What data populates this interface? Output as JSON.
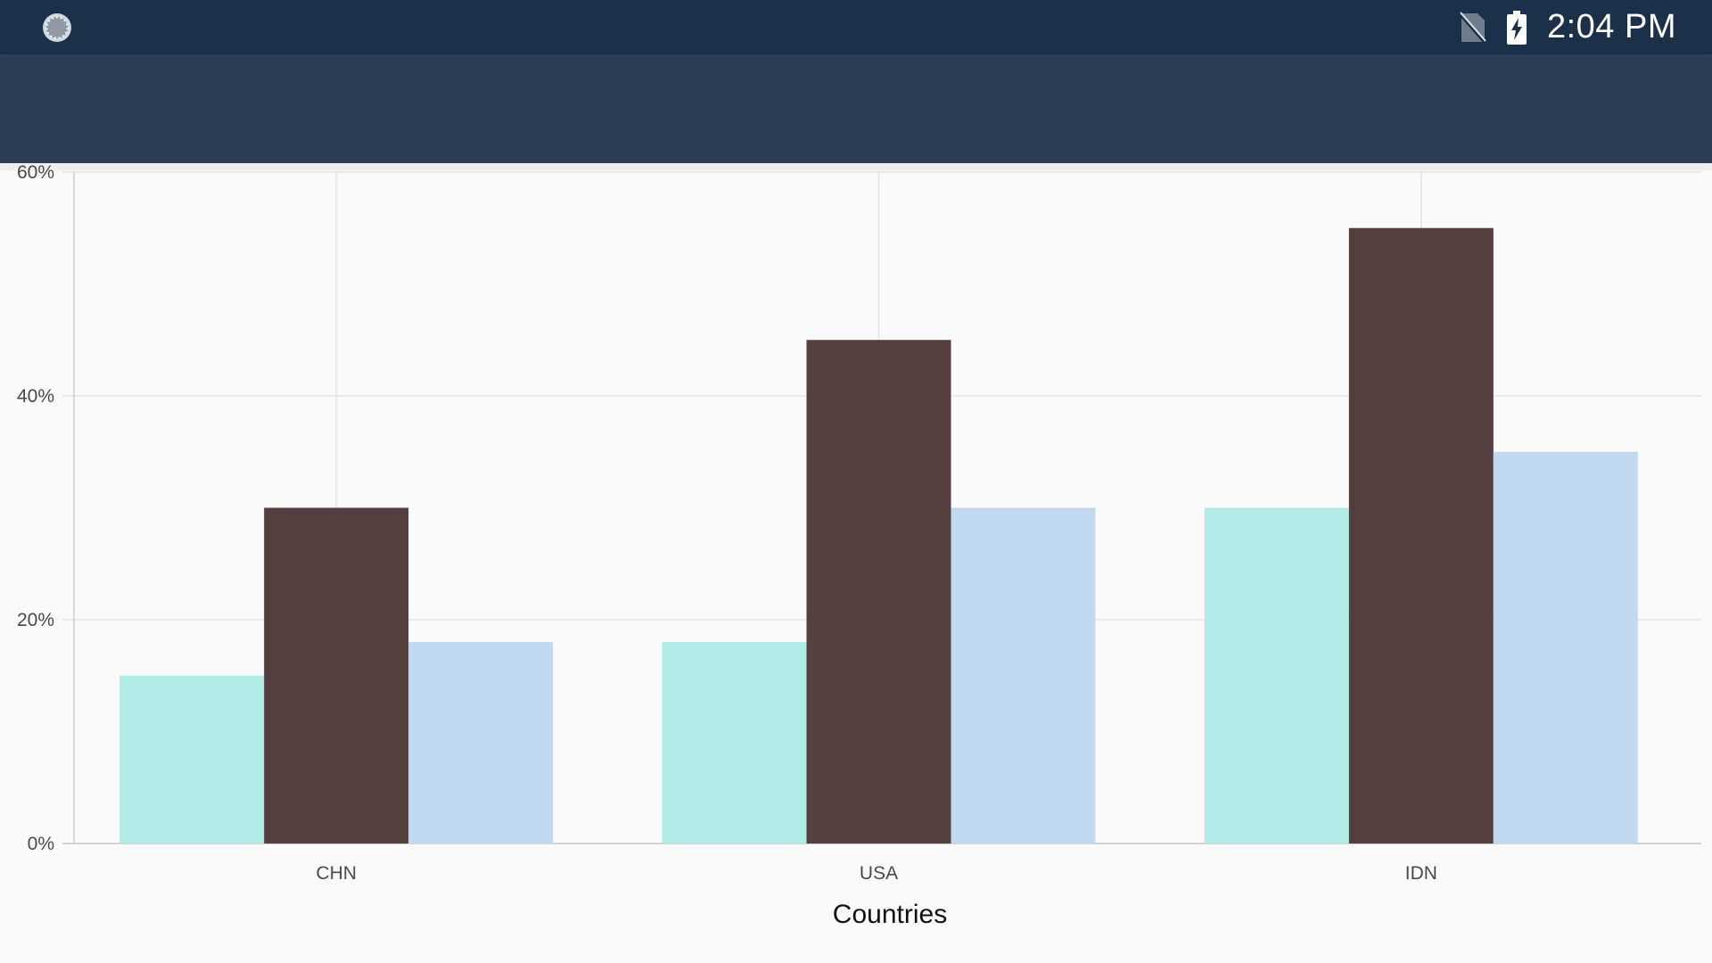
{
  "status_bar": {
    "time": "2:04 PM",
    "icons": [
      "loading-spinner-icon",
      "no-sim-icon",
      "battery-charging-icon"
    ]
  },
  "colors": {
    "status_bar": "#1c304a",
    "app_bar": "#2e3e52",
    "series_1": "#b3ebe6",
    "series_2": "#523f3e",
    "series_3": "#c2d8ef"
  },
  "chart_data": {
    "type": "bar",
    "categories": [
      "CHN",
      "USA",
      "IDN"
    ],
    "series": [
      {
        "values": [
          15,
          18,
          30
        ]
      },
      {
        "values": [
          30,
          45,
          55
        ]
      },
      {
        "values": [
          18,
          30,
          35
        ]
      }
    ],
    "yticks": [
      "0%",
      "20%",
      "40%",
      "60%"
    ],
    "ylim": [
      0,
      60
    ],
    "xlabel": "Countries",
    "ylabel": "",
    "grid": true,
    "legend": "none"
  }
}
